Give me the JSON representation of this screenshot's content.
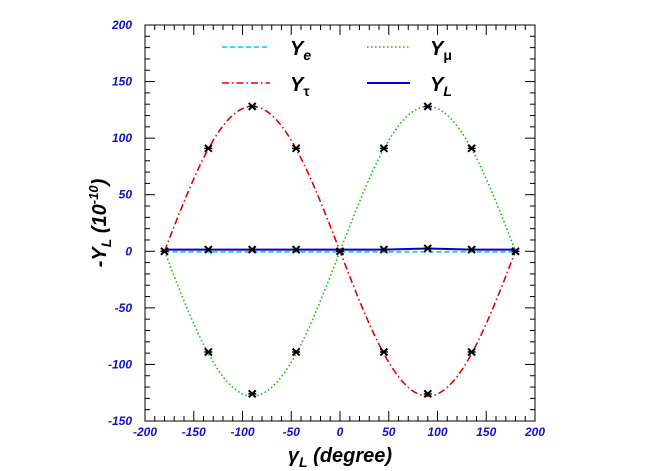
{
  "chart_data": {
    "type": "line",
    "title": "",
    "xlabel": {
      "main": "γ",
      "sub": "L",
      "rest": " (degree)"
    },
    "ylabel": {
      "pre": "-Y",
      "sub": "L",
      "mid": " (10",
      "sup": "-10",
      "post": ")"
    },
    "xlim": [
      -200,
      200
    ],
    "ylim": [
      -150,
      150
    ],
    "x_ticks": [
      -200,
      -150,
      -100,
      -50,
      0,
      50,
      100,
      150,
      200
    ],
    "y_ticks": [
      -150,
      -100,
      -50,
      0,
      50,
      100,
      150,
      200
    ],
    "x_tick_labels": [
      "-200",
      "-150",
      "-100",
      "-50",
      "0",
      "50",
      "100",
      "150",
      "200"
    ],
    "y_tick_labels": [
      "-150",
      "-100",
      "-50",
      "0",
      "50",
      "100",
      "150",
      "200"
    ],
    "grid": false,
    "legend_position": "top",
    "x": [
      -180,
      -135,
      -90,
      -45,
      0,
      45,
      90,
      135,
      180
    ],
    "series": [
      {
        "name": "Y_e",
        "label_main": "Y",
        "label_sub": "e",
        "color": "#00c8ff",
        "style": "dashed",
        "values": [
          -0.5,
          -0.5,
          -0.5,
          -0.5,
          -0.5,
          -0.5,
          -0.5,
          -0.5,
          -0.5
        ]
      },
      {
        "name": "Y_mu",
        "label_main": "Y",
        "label_sub": "μ",
        "color": "#00c800",
        "style": "dotted",
        "values": [
          0,
          -89,
          -126,
          -89,
          0,
          91,
          128,
          91,
          0
        ]
      },
      {
        "name": "Y_tau",
        "label_main": "Y",
        "label_sub": "τ",
        "color": "#e00000",
        "style": "dashdot",
        "values": [
          0,
          91,
          128,
          91,
          0,
          -89,
          -126,
          -89,
          0
        ]
      },
      {
        "name": "Y_L",
        "label_main": "Y",
        "label_sub": "L",
        "color": "#0000c8",
        "style": "solid",
        "values": [
          1.5,
          1.5,
          1.5,
          1.5,
          1.5,
          1.5,
          2.5,
          1.5,
          1.5
        ]
      }
    ],
    "markers": {
      "color": "#000000",
      "points": [
        [
          -180,
          0
        ],
        [
          -135,
          91
        ],
        [
          -90,
          128
        ],
        [
          -45,
          91
        ],
        [
          0,
          0
        ],
        [
          45,
          91
        ],
        [
          90,
          128
        ],
        [
          135,
          91
        ],
        [
          180,
          0
        ],
        [
          -135,
          -89
        ],
        [
          -90,
          -126
        ],
        [
          -45,
          -89
        ],
        [
          45,
          -89
        ],
        [
          90,
          -126
        ],
        [
          135,
          -89
        ],
        [
          -135,
          1.5
        ],
        [
          -90,
          1.5
        ],
        [
          -45,
          1.5
        ],
        [
          45,
          1.5
        ],
        [
          90,
          2.5
        ],
        [
          135,
          1.5
        ]
      ]
    }
  }
}
